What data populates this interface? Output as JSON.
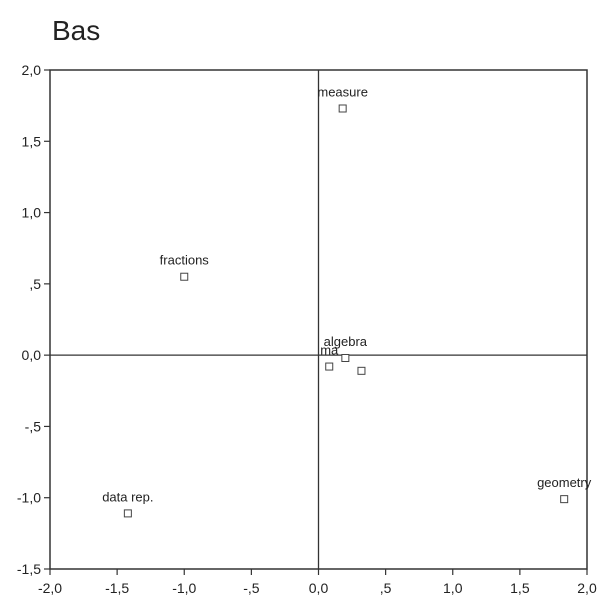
{
  "chart_data": {
    "type": "scatter",
    "title": "Bas",
    "xlabel": "",
    "ylabel": "",
    "xlim": [
      -2.0,
      2.0
    ],
    "ylim": [
      -1.5,
      2.0
    ],
    "grid": false,
    "xticks": [
      -2.0,
      -1.5,
      -1.0,
      -0.5,
      0.0,
      0.5,
      1.0,
      1.5,
      2.0
    ],
    "xtick_labels": [
      "-2,0",
      "-1,5",
      "-1,0",
      "-,5",
      "0,0",
      ",5",
      "1,0",
      "1,5",
      "2,0"
    ],
    "yticks": [
      2.0,
      1.5,
      1.0,
      0.5,
      0.0,
      -0.5,
      -1.0,
      -1.5
    ],
    "ytick_labels": [
      "2,0",
      "1,5",
      "1,0",
      ",5",
      "0,0",
      "-,5",
      "-1,0",
      "-1,5"
    ],
    "points": [
      {
        "label": "measure",
        "x": 0.18,
        "y": 1.73
      },
      {
        "label": "fractions",
        "x": -1.0,
        "y": 0.55
      },
      {
        "label": "ma",
        "x": 0.08,
        "y": -0.08
      },
      {
        "label": "algebra",
        "x": 0.2,
        "y": -0.02
      },
      {
        "label": "",
        "x": 0.32,
        "y": -0.11
      },
      {
        "label": "geometry",
        "x": 1.83,
        "y": -1.01
      },
      {
        "label": "data rep.",
        "x": -1.42,
        "y": -1.11
      }
    ],
    "reference_lines": {
      "x": 0.0,
      "y": 0.0
    }
  }
}
